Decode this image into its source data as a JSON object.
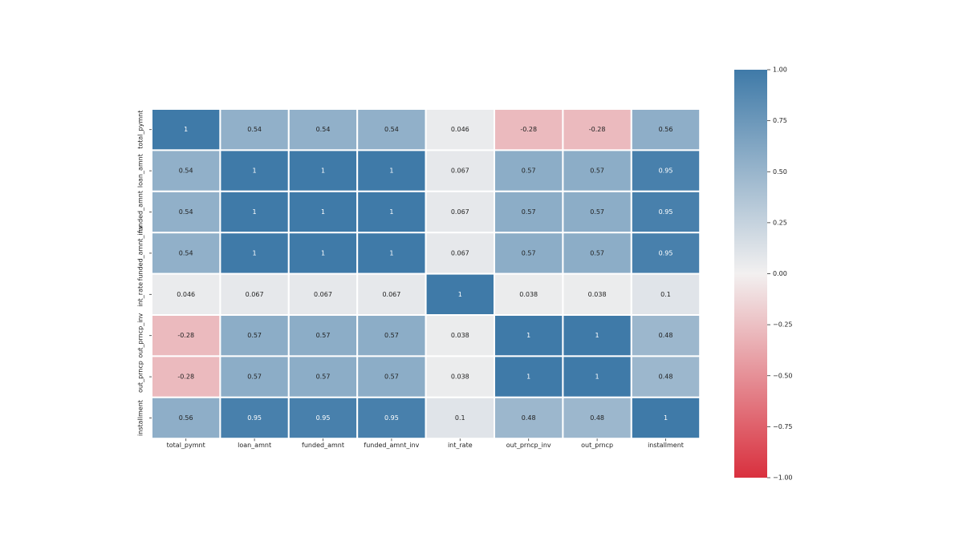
{
  "chart_data": {
    "type": "heatmap",
    "title": "",
    "xlabel": "",
    "ylabel": "",
    "x_labels": [
      "total_pymnt",
      "loan_amnt",
      "funded_amnt",
      "funded_amnt_inv",
      "int_rate",
      "out_prncp_inv",
      "out_prncp",
      "installment"
    ],
    "y_labels": [
      "total_pymnt",
      "loan_amnt",
      "funded_amnt",
      "funded_amnt_inv",
      "int_rate",
      "out_prncp_inv",
      "out_prncp",
      "installment"
    ],
    "values": [
      [
        1,
        0.54,
        0.54,
        0.54,
        0.046,
        -0.28,
        -0.28,
        0.56
      ],
      [
        0.54,
        1,
        1,
        1,
        0.067,
        0.57,
        0.57,
        0.95
      ],
      [
        0.54,
        1,
        1,
        1,
        0.067,
        0.57,
        0.57,
        0.95
      ],
      [
        0.54,
        1,
        1,
        1,
        0.067,
        0.57,
        0.57,
        0.95
      ],
      [
        0.046,
        0.067,
        0.067,
        0.067,
        1,
        0.038,
        0.038,
        0.1
      ],
      [
        -0.28,
        0.57,
        0.57,
        0.57,
        0.038,
        1,
        1,
        0.48
      ],
      [
        -0.28,
        0.57,
        0.57,
        0.57,
        0.038,
        1,
        1,
        0.48
      ],
      [
        0.56,
        0.95,
        0.95,
        0.95,
        0.1,
        0.48,
        0.48,
        1
      ]
    ],
    "annotations": [
      [
        "1",
        "0.54",
        "0.54",
        "0.54",
        "0.046",
        "-0.28",
        "-0.28",
        "0.56"
      ],
      [
        "0.54",
        "1",
        "1",
        "1",
        "0.067",
        "0.57",
        "0.57",
        "0.95"
      ],
      [
        "0.54",
        "1",
        "1",
        "1",
        "0.067",
        "0.57",
        "0.57",
        "0.95"
      ],
      [
        "0.54",
        "1",
        "1",
        "1",
        "0.067",
        "0.57",
        "0.57",
        "0.95"
      ],
      [
        "0.046",
        "0.067",
        "0.067",
        "0.067",
        "1",
        "0.038",
        "0.038",
        "0.1"
      ],
      [
        "-0.28",
        "0.57",
        "0.57",
        "0.57",
        "0.038",
        "1",
        "1",
        "0.48"
      ],
      [
        "-0.28",
        "0.57",
        "0.57",
        "0.57",
        "0.038",
        "1",
        "1",
        "0.48"
      ],
      [
        "0.56",
        "0.95",
        "0.95",
        "0.95",
        "0.1",
        "0.48",
        "0.48",
        "1"
      ]
    ],
    "vmin": -1,
    "vmax": 1,
    "colormap": {
      "low": "#d9303e",
      "mid": "#f2f0f0",
      "high": "#3f7aa8"
    },
    "colorbar": {
      "ticks": [
        1.0,
        0.75,
        0.5,
        0.25,
        0.0,
        -0.25,
        -0.5,
        -0.75,
        -1.0
      ],
      "tick_labels": [
        "1.00",
        "0.75",
        "0.50",
        "0.25",
        "0.00",
        "−0.25",
        "−0.50",
        "−0.75",
        "−1.00"
      ]
    },
    "grid": false,
    "legend": "colorbar-right"
  }
}
